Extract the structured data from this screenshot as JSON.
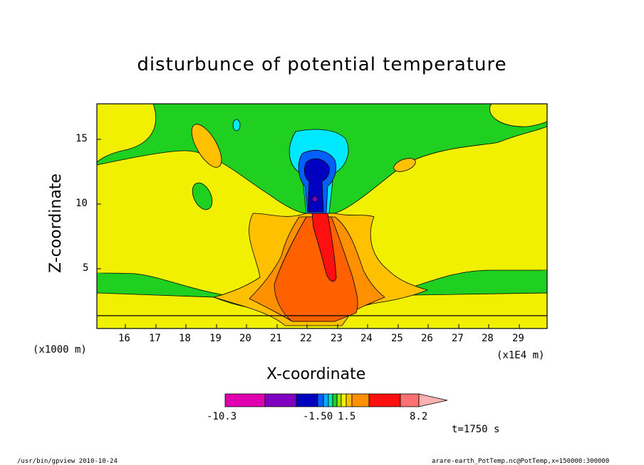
{
  "chart_data": {
    "type": "contour",
    "title": "disturbunce of potential temperature",
    "xlabel": "X-coordinate",
    "ylabel": "Z-coordinate",
    "x_unit_left": "(x1000 m)",
    "x_unit_right": "(x1E4 m)",
    "x_ticks": [
      "16",
      "17",
      "18",
      "19",
      "20",
      "21",
      "22",
      "23",
      "24",
      "25",
      "26",
      "27",
      "28",
      "29"
    ],
    "y_ticks": [
      "5",
      "10",
      "15"
    ],
    "xlim": [
      15.2,
      30.0
    ],
    "ylim": [
      0.5,
      17.5
    ],
    "colorbar_labels": [
      "-10.3",
      "-1.50",
      "1.5",
      "8.2"
    ],
    "colorbar_colors": [
      "#e000b0",
      "#8000c0",
      "#0000c0",
      "#0060ff",
      "#00b0ff",
      "#00e8c0",
      "#20d020",
      "#a0e000",
      "#f0f000",
      "#ffc000",
      "#ff9000",
      "#ff6000",
      "#ff1010",
      "#ff7070",
      "#ffb0b0"
    ],
    "time_label": "t=1750 s"
  },
  "footer": {
    "left": "/usr/bin/gpview   2010-10-24",
    "right": "arare-earth_PotTemp.nc@PotTemp,x=150000:300000"
  }
}
